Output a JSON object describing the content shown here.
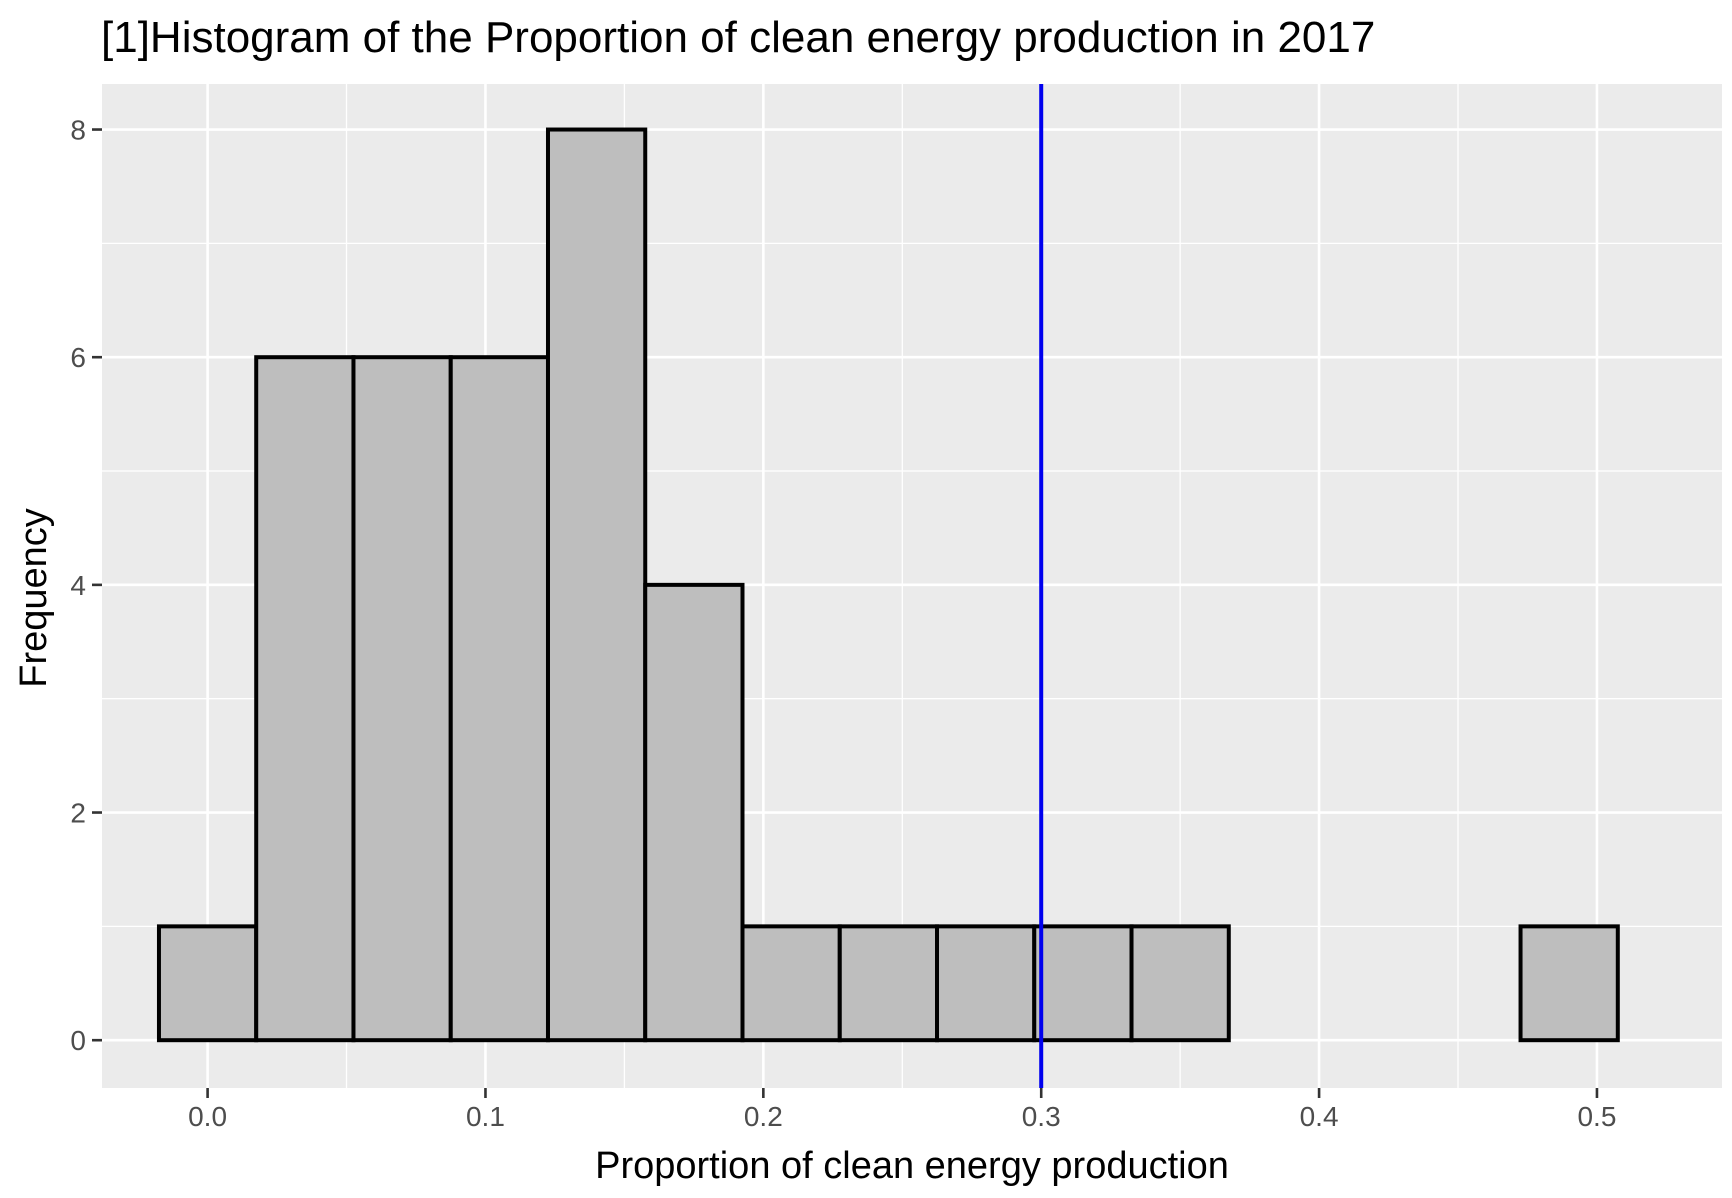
{
  "chart_data": {
    "type": "bar",
    "title": "[1]Histogram of the Proportion of clean energy production in 2017",
    "xlabel": "Proportion of clean energy production",
    "ylabel": "Frequency",
    "xlim": [
      -0.038,
      0.545
    ],
    "ylim": [
      -0.42,
      8.4
    ],
    "x_ticks": [
      0.0,
      0.1,
      0.2,
      0.3,
      0.4,
      0.5
    ],
    "x_tick_labels": [
      "0.0",
      "0.1",
      "0.2",
      "0.3",
      "0.4",
      "0.5"
    ],
    "y_ticks": [
      0,
      2,
      4,
      6,
      8
    ],
    "y_tick_labels": [
      "0",
      "2",
      "4",
      "6",
      "8"
    ],
    "bins": [
      {
        "x0": -0.0175,
        "x1": 0.0175,
        "count": 1
      },
      {
        "x0": 0.0175,
        "x1": 0.0525,
        "count": 6
      },
      {
        "x0": 0.0525,
        "x1": 0.0875,
        "count": 6
      },
      {
        "x0": 0.0875,
        "x1": 0.1225,
        "count": 6
      },
      {
        "x0": 0.1225,
        "x1": 0.1575,
        "count": 8
      },
      {
        "x0": 0.1575,
        "x1": 0.1925,
        "count": 4
      },
      {
        "x0": 0.1925,
        "x1": 0.2275,
        "count": 1
      },
      {
        "x0": 0.2275,
        "x1": 0.2625,
        "count": 1
      },
      {
        "x0": 0.2625,
        "x1": 0.2975,
        "count": 1
      },
      {
        "x0": 0.2975,
        "x1": 0.3325,
        "count": 1
      },
      {
        "x0": 0.3325,
        "x1": 0.3675,
        "count": 1
      },
      {
        "x0": 0.3675,
        "x1": 0.4025,
        "count": 0
      },
      {
        "x0": 0.4025,
        "x1": 0.4375,
        "count": 0
      },
      {
        "x0": 0.4375,
        "x1": 0.4725,
        "count": 0
      },
      {
        "x0": 0.4725,
        "x1": 0.5075,
        "count": 1
      }
    ],
    "reference_line": {
      "x": 0.3,
      "color": "#0000ee"
    },
    "bar_fill": "#bebebe",
    "bar_stroke": "#000000",
    "panel_background": "#ebebeb",
    "grid": true
  }
}
